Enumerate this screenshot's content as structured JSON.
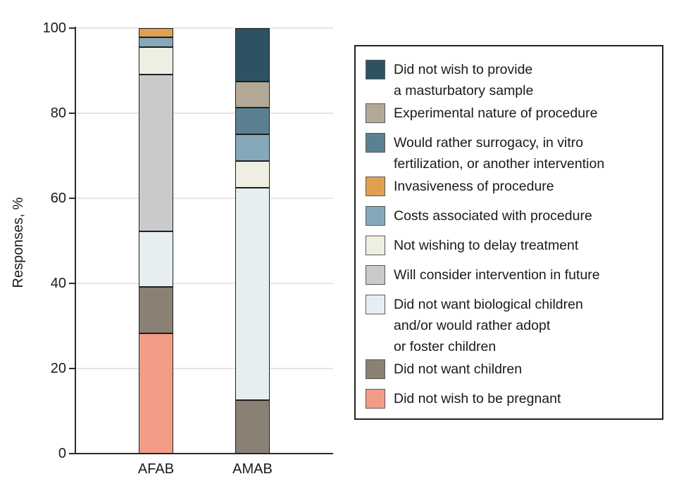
{
  "chart_data": {
    "type": "bar",
    "stacked": true,
    "title": "",
    "xlabel": "",
    "ylabel": "Responses, %",
    "categories": [
      "AFAB",
      "AMAB"
    ],
    "ylim": [
      0,
      100
    ],
    "yticks": [
      0,
      20,
      40,
      60,
      80,
      100
    ],
    "grid": true,
    "legend_position": "right",
    "series": [
      {
        "name": "Did not wish to provide a masturbatory sample",
        "color": "#2D5362",
        "values": [
          0,
          12.5
        ]
      },
      {
        "name": "Experimental nature of procedure",
        "color": "#B3A996",
        "values": [
          0,
          6.25
        ]
      },
      {
        "name": "Would rather surrogacy, in vitro fertilization, or another intervention",
        "color": "#5B8092",
        "values": [
          0,
          6.25
        ]
      },
      {
        "name": "Invasiveness of procedure",
        "color": "#E0A052",
        "values": [
          2.2,
          0
        ]
      },
      {
        "name": "Costs associated with procedure",
        "color": "#86A8BB",
        "values": [
          2.2,
          6.25
        ]
      },
      {
        "name": "Not wishing to delay treatment",
        "color": "#EFEEE2",
        "values": [
          6.5,
          6.25
        ]
      },
      {
        "name": "Will consider intervention in future",
        "color": "#C8CACB",
        "values": [
          36.9,
          0
        ]
      },
      {
        "name": "Did not want biological children and/or would rather adopt or foster children",
        "color": "#E6EEF2",
        "values": [
          13.0,
          50.0
        ]
      },
      {
        "name": "Did not want children",
        "color": "#8A8174",
        "values": [
          10.9,
          12.5
        ]
      },
      {
        "name": "Did not wish to be pregnant",
        "color": "#F29C88",
        "values": [
          28.3,
          0
        ]
      }
    ]
  },
  "legend": {
    "items": [
      {
        "series_index": 0,
        "lines": [
          "Did not wish to provide",
          "a masturbatory sample"
        ]
      },
      {
        "series_index": 1,
        "lines": [
          "Experimental nature of procedure"
        ]
      },
      {
        "series_index": 2,
        "lines": [
          "Would rather surrogacy, in vitro",
          "fertilization, or another intervention"
        ]
      },
      {
        "series_index": 3,
        "lines": [
          "Invasiveness of procedure"
        ]
      },
      {
        "series_index": 4,
        "lines": [
          "Costs associated with procedure"
        ]
      },
      {
        "series_index": 5,
        "lines": [
          "Not wishing to delay treatment"
        ]
      },
      {
        "series_index": 6,
        "lines": [
          "Will consider intervention in future"
        ]
      },
      {
        "series_index": 7,
        "lines": [
          "Did not want biological children",
          "and/or would rather adopt",
          "or foster children"
        ]
      },
      {
        "series_index": 8,
        "lines": [
          "Did not want children"
        ]
      },
      {
        "series_index": 9,
        "lines": [
          "Did not wish to be pregnant"
        ]
      }
    ]
  }
}
